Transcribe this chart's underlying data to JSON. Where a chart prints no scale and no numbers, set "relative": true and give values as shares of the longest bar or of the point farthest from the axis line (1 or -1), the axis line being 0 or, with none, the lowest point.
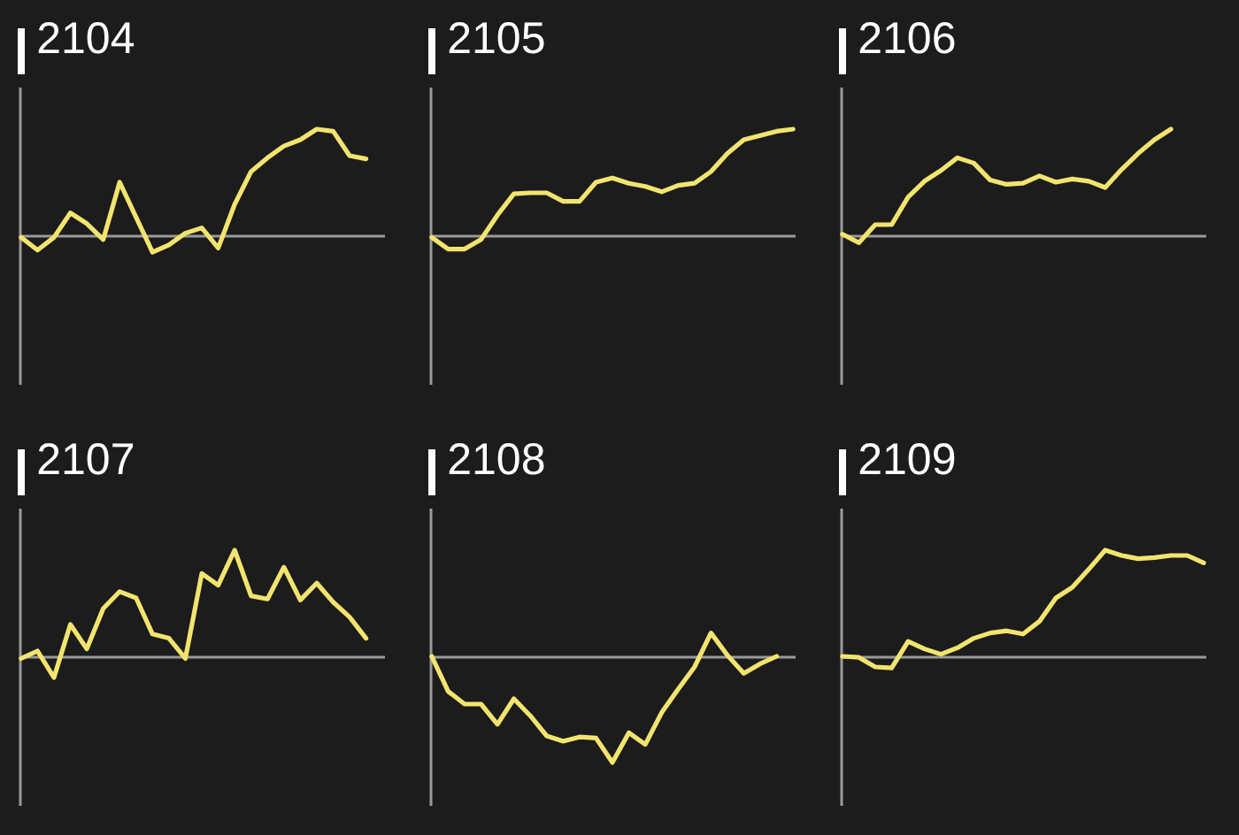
{
  "chart_data": [
    {
      "type": "line",
      "title": "2104",
      "relative": true,
      "color": "#f2e46e",
      "categories": [
        null,
        null,
        null,
        null,
        null,
        null,
        null,
        null,
        null,
        null,
        null,
        null,
        null,
        null,
        null,
        null,
        null,
        null,
        null,
        null,
        null,
        null,
        null
      ],
      "values": [
        -0.02,
        -0.14,
        -0.02,
        0.21,
        0.11,
        -0.04,
        0.5,
        0.17,
        -0.16,
        -0.09,
        0.02,
        0.07,
        -0.12,
        0.29,
        0.6,
        0.73,
        0.84,
        0.9,
        1.0,
        0.98,
        0.75,
        0.72,
        null
      ]
    },
    {
      "type": "line",
      "title": "2105",
      "relative": true,
      "color": "#f2e46e",
      "categories": [
        null,
        null,
        null,
        null,
        null,
        null,
        null,
        null,
        null,
        null,
        null,
        null,
        null,
        null,
        null,
        null,
        null,
        null,
        null,
        null,
        null,
        null,
        null
      ],
      "values": [
        -0.02,
        -0.13,
        -0.13,
        -0.04,
        0.19,
        0.39,
        0.4,
        0.4,
        0.32,
        0.32,
        0.5,
        0.54,
        0.49,
        0.46,
        0.41,
        0.47,
        0.49,
        0.6,
        0.77,
        0.9,
        0.94,
        0.98,
        1.0
      ]
    },
    {
      "type": "line",
      "title": "2106",
      "relative": true,
      "color": "#f2e46e",
      "categories": [
        null,
        null,
        null,
        null,
        null,
        null,
        null,
        null,
        null,
        null,
        null,
        null,
        null,
        null,
        null,
        null,
        null,
        null,
        null,
        null,
        null,
        null,
        null
      ],
      "values": [
        0.01,
        -0.07,
        0.1,
        0.1,
        0.36,
        0.51,
        0.61,
        0.73,
        0.68,
        0.52,
        0.48,
        0.49,
        0.56,
        0.5,
        0.53,
        0.51,
        0.45,
        0.62,
        0.77,
        0.9,
        1.0,
        null,
        null
      ]
    },
    {
      "type": "line",
      "title": "2107",
      "relative": true,
      "color": "#f2e46e",
      "categories": [
        null,
        null,
        null,
        null,
        null,
        null,
        null,
        null,
        null,
        null,
        null,
        null,
        null,
        null,
        null,
        null,
        null,
        null,
        null,
        null,
        null,
        null,
        null
      ],
      "values": [
        -0.02,
        0.05,
        -0.2,
        0.3,
        0.07,
        0.45,
        0.61,
        0.55,
        0.21,
        0.17,
        -0.02,
        0.78,
        0.67,
        1.0,
        0.57,
        0.54,
        0.84,
        0.53,
        0.69,
        0.51,
        0.37,
        0.17,
        null
      ]
    },
    {
      "type": "line",
      "title": "2108",
      "relative": true,
      "color": "#f2e46e",
      "categories": [
        null,
        null,
        null,
        null,
        null,
        null,
        null,
        null,
        null,
        null,
        null,
        null,
        null,
        null,
        null,
        null,
        null,
        null,
        null,
        null,
        null,
        null,
        null
      ],
      "values": [
        0,
        -0.33,
        -0.45,
        -0.45,
        -0.64,
        -0.4,
        -0.56,
        -0.75,
        -0.8,
        -0.76,
        -0.77,
        -1.0,
        -0.72,
        -0.83,
        -0.53,
        -0.31,
        -0.1,
        0.22,
        0.01,
        -0.16,
        -0.07,
        0,
        null
      ]
    },
    {
      "type": "line",
      "title": "2109",
      "relative": true,
      "color": "#f2e46e",
      "categories": [
        null,
        null,
        null,
        null,
        null,
        null,
        null,
        null,
        null,
        null,
        null,
        null,
        null,
        null,
        null,
        null,
        null,
        null,
        null,
        null,
        null,
        null,
        null
      ],
      "values": [
        0,
        -0.01,
        -0.1,
        -0.11,
        0.14,
        0.07,
        0.02,
        0.08,
        0.17,
        0.22,
        0.24,
        0.21,
        0.33,
        0.55,
        0.65,
        0.82,
        1.0,
        0.95,
        0.92,
        0.93,
        0.95,
        0.95,
        0.88
      ]
    }
  ]
}
